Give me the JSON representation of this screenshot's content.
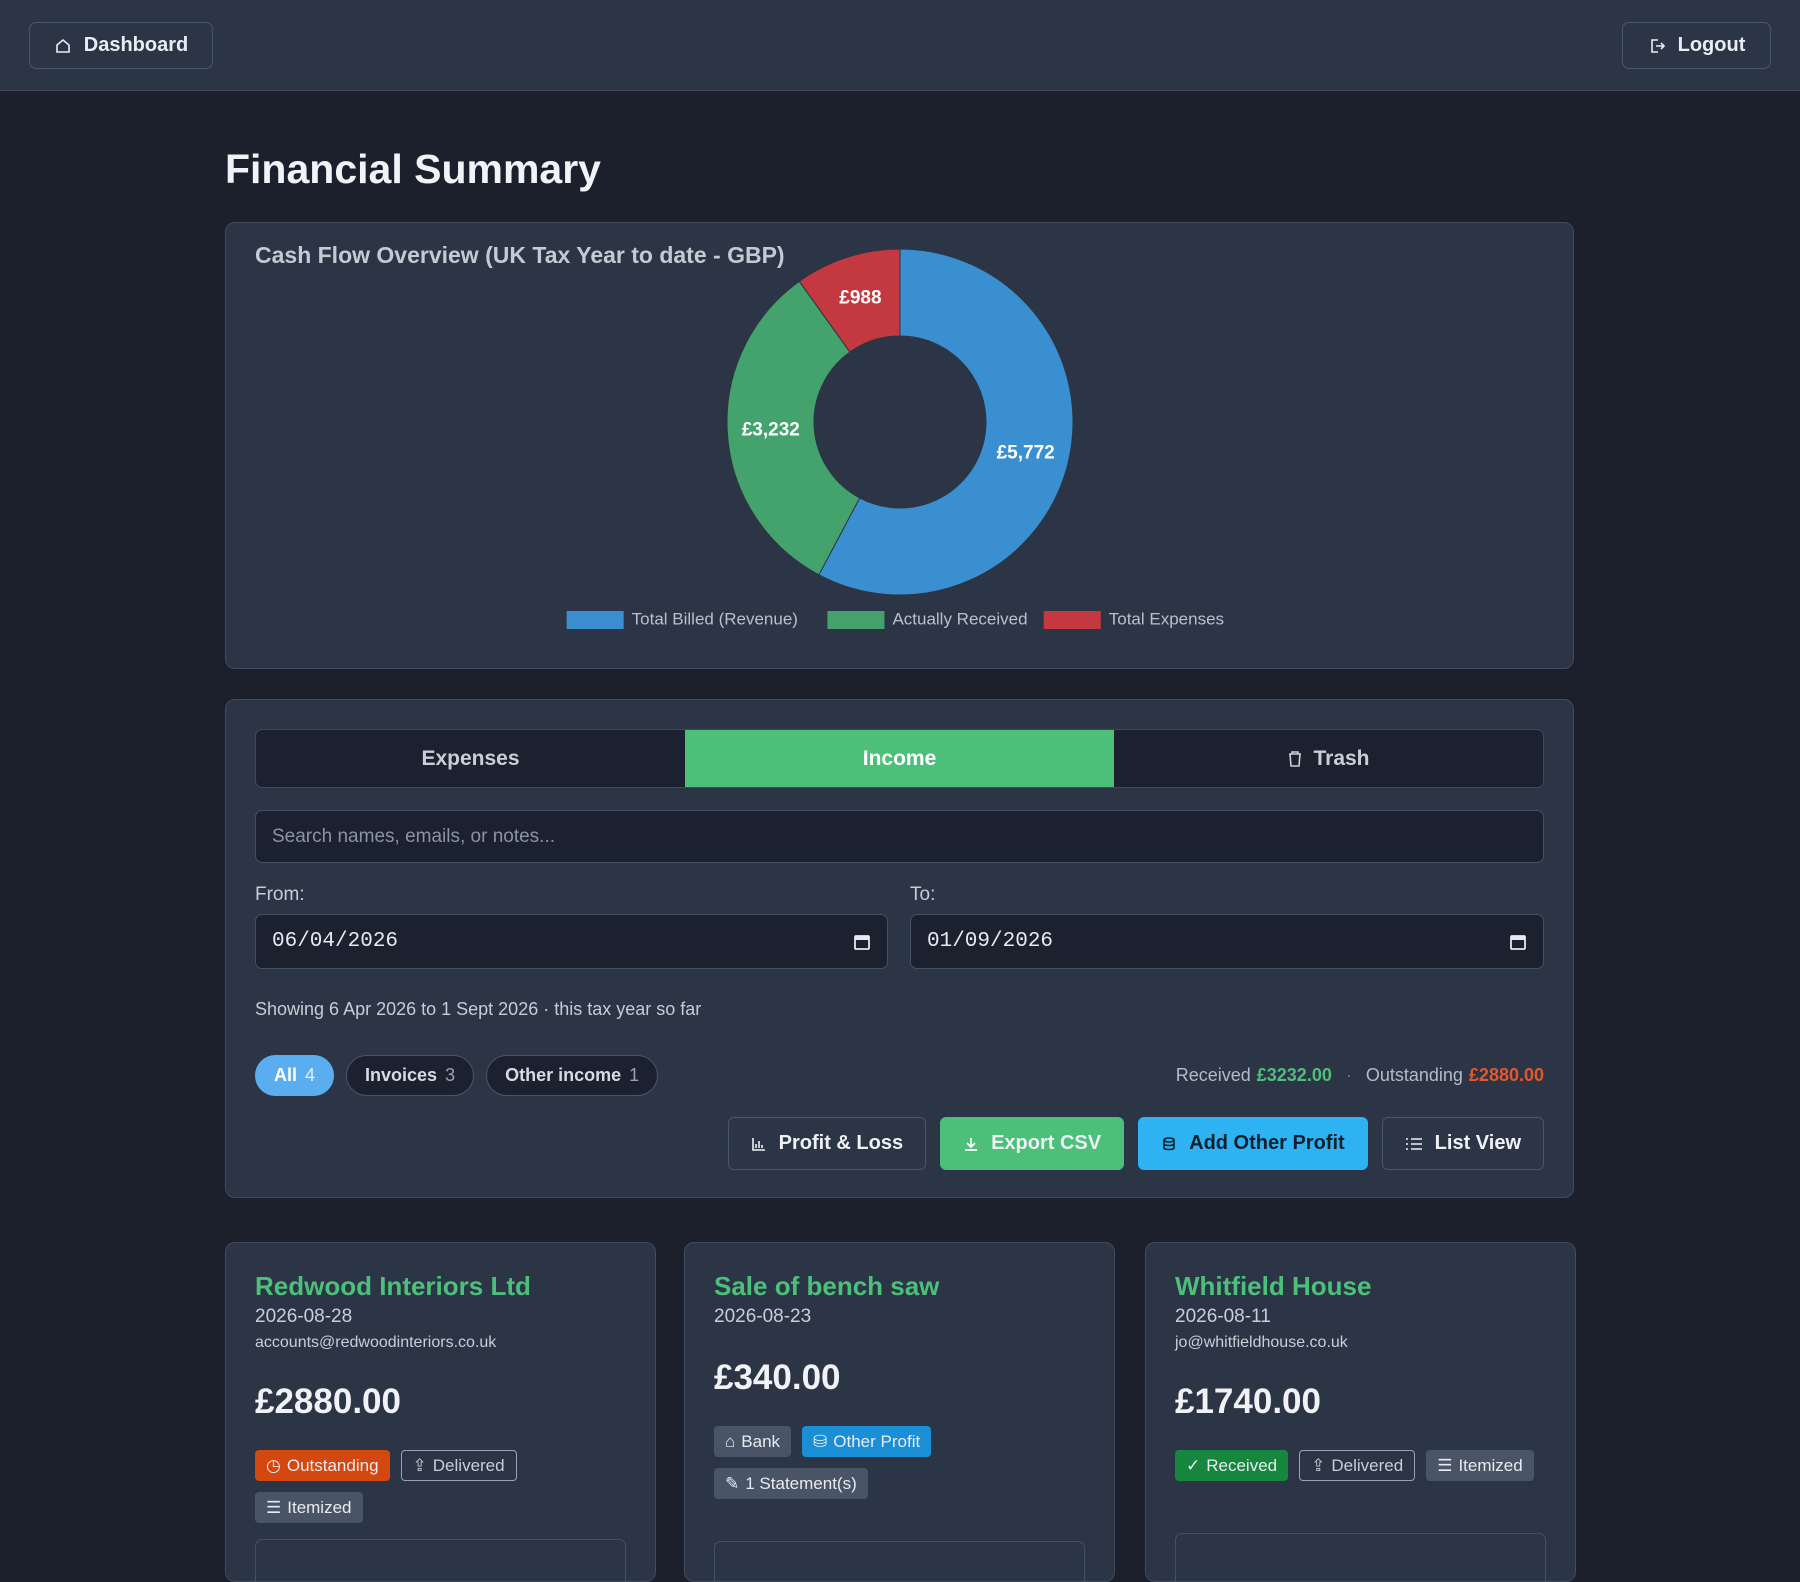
{
  "nav": {
    "dashboard": "Dashboard",
    "logout": "Logout"
  },
  "page_title": "Financial Summary",
  "chart_data": {
    "type": "pie",
    "title": "Cash Flow Overview (UK Tax Year to date - GBP)",
    "categories": [
      "Total Billed (Revenue)",
      "Actually Received",
      "Total Expenses"
    ],
    "values": [
      5772,
      3232,
      988
    ],
    "value_labels": [
      "£5,772",
      "£3,232",
      "£988"
    ],
    "colors": [
      "#3a8fd1",
      "#44a26c",
      "#c4393f"
    ],
    "donut": true,
    "legend": "bottom"
  },
  "tabs": [
    "Expenses",
    "Income",
    "Trash"
  ],
  "search_placeholder": "Search names, emails, or notes...",
  "filters": {
    "from_label": "From:",
    "from": "06/04/2026",
    "to_label": "To:",
    "to": "01/09/2026",
    "summary": "Showing 6 Apr 2026 to 1 Sept 2026 · this tax year so far"
  },
  "pills": [
    {
      "label": "All",
      "count": "4"
    },
    {
      "label": "Invoices",
      "count": "3"
    },
    {
      "label": "Other income",
      "count": "1"
    }
  ],
  "totals": {
    "received_label": "Received",
    "received": "£3232.00",
    "separator": "·",
    "outstanding_label": "Outstanding",
    "outstanding": "£2880.00"
  },
  "actions": [
    "Profit & Loss",
    "Export CSV",
    "Add Other Profit",
    "List View"
  ],
  "records": [
    {
      "name": "Redwood Interiors Ltd",
      "date": "2026-08-28",
      "email": "accounts@redwoodinteriors.co.uk",
      "amount": "£2880.00",
      "tags": [
        "Outstanding",
        "Delivered",
        "Itemized"
      ]
    },
    {
      "name": "Sale of bench saw",
      "date": "2026-08-23",
      "amount": "£340.00",
      "tags": [
        "Bank",
        "Other Profit",
        "1 Statement(s)"
      ]
    },
    {
      "name": "Whitfield House",
      "date": "2026-08-11",
      "email": "jo@whitfieldhouse.co.uk",
      "amount": "£1740.00",
      "tags": [
        "Received",
        "Delivered",
        "Itemized"
      ]
    }
  ]
}
